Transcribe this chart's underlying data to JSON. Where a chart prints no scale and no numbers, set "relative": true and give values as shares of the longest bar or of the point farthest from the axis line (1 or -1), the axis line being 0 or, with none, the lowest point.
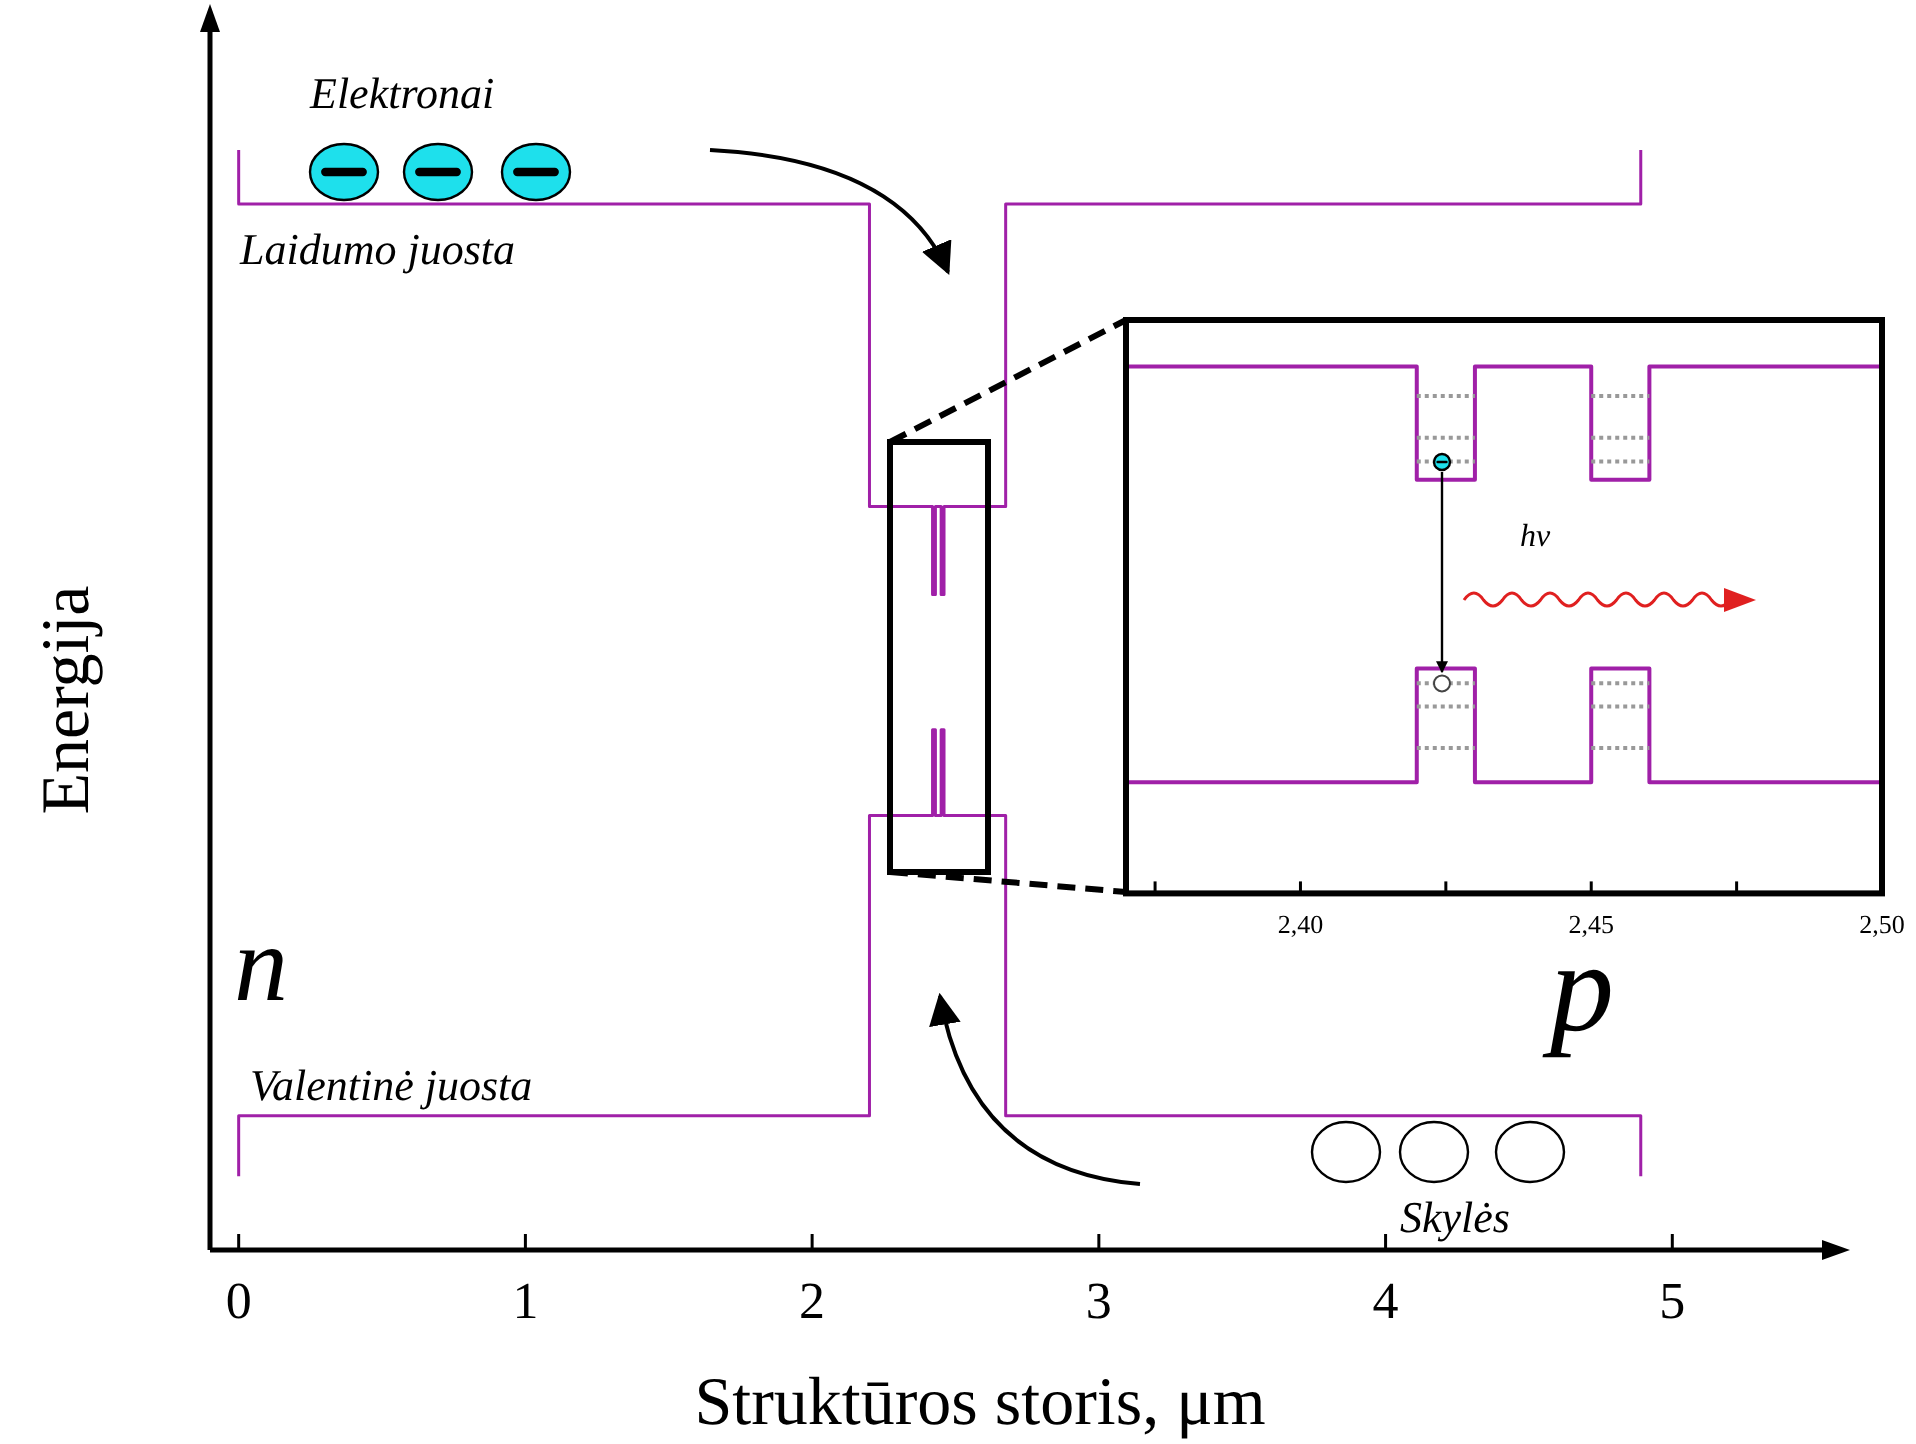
{
  "chart_data": [
    {
      "type": "line",
      "xlabel": "Struktūros storis, μm",
      "ylabel": "Energija",
      "relative": true,
      "xlim": [
        -0.1,
        5.55
      ],
      "xticks": [
        0,
        1,
        2,
        3,
        4,
        5
      ],
      "grid": false,
      "annotations": [
        "Elektronai",
        "Laidumo juosta",
        "Valentinė juosta",
        "Skylės",
        "n",
        "p"
      ],
      "series": [
        {
          "color": "#a020a8",
          "x": [
            0,
            0,
            2.2,
            2.2,
            2.42,
            2.42,
            2.43,
            2.43,
            2.45,
            2.45,
            2.46,
            2.46,
            2.675,
            2.675,
            4.89,
            4.89
          ],
          "values": [
            1,
            0.951,
            0.951,
            0.676,
            0.676,
            0.596,
            0.596,
            0.676,
            0.676,
            0.596,
            0.596,
            0.676,
            0.676,
            0.951,
            0.951,
            1
          ]
        },
        {
          "color": "#a020a8",
          "x": [
            0,
            0,
            2.2,
            2.2,
            2.42,
            2.42,
            2.43,
            2.43,
            2.45,
            2.45,
            2.46,
            2.46,
            2.675,
            2.675,
            4.89,
            4.89
          ],
          "values": [
            0.067,
            0.122,
            0.122,
            0.395,
            0.395,
            0.473,
            0.473,
            0.395,
            0.395,
            0.473,
            0.473,
            0.395,
            0.395,
            0.122,
            0.122,
            0.067
          ]
        }
      ]
    },
    {
      "type": "line",
      "relative": true,
      "xlim": [
        2.37,
        2.5
      ],
      "xticks": [
        {
          "value": 2.375,
          "label": null
        },
        {
          "value": 2.4,
          "label": "2,40"
        },
        {
          "value": 2.425,
          "label": null
        },
        {
          "value": 2.45,
          "label": "2,45"
        },
        {
          "value": 2.475,
          "label": null
        },
        {
          "value": 2.5,
          "label": "2,50"
        }
      ],
      "grid": false,
      "annotations": [
        "hν"
      ],
      "series": [
        {
          "color": "#a020a8",
          "x": [
            2.37,
            2.42,
            2.42,
            2.43,
            2.43,
            2.45,
            2.45,
            2.46,
            2.46,
            2.5
          ],
          "values": [
            1,
            1,
            0.785,
            0.785,
            1,
            1,
            0.785,
            0.785,
            1,
            1
          ]
        },
        {
          "color": "#a020a8",
          "x": [
            2.37,
            2.42,
            2.42,
            2.43,
            2.43,
            2.45,
            2.45,
            2.46,
            2.46,
            2.5
          ],
          "values": [
            0.211,
            0.211,
            0.427,
            0.427,
            0.211,
            0.211,
            0.427,
            0.427,
            0.211,
            0.211
          ]
        },
        {
          "color": "#999999",
          "line_style": "dotted",
          "x": [
            2.42,
            2.43
          ],
          "values": [
            0.944,
            0.944
          ]
        },
        {
          "color": "#999999",
          "line_style": "dotted",
          "x": [
            2.42,
            2.43
          ],
          "values": [
            0.865,
            0.865
          ]
        },
        {
          "color": "#999999",
          "line_style": "dotted",
          "x": [
            2.42,
            2.43
          ],
          "values": [
            0.82,
            0.82
          ]
        },
        {
          "color": "#999999",
          "line_style": "dotted",
          "x": [
            2.45,
            2.46
          ],
          "values": [
            0.944,
            0.944
          ]
        },
        {
          "color": "#999999",
          "line_style": "dotted",
          "x": [
            2.45,
            2.46
          ],
          "values": [
            0.865,
            0.865
          ]
        },
        {
          "color": "#999999",
          "line_style": "dotted",
          "x": [
            2.45,
            2.46
          ],
          "values": [
            0.82,
            0.82
          ]
        },
        {
          "color": "#999999",
          "line_style": "dotted",
          "x": [
            2.42,
            2.43
          ],
          "values": [
            0.399,
            0.399
          ]
        },
        {
          "color": "#999999",
          "line_style": "dotted",
          "x": [
            2.42,
            2.43
          ],
          "values": [
            0.355,
            0.355
          ]
        },
        {
          "color": "#999999",
          "line_style": "dotted",
          "x": [
            2.42,
            2.43
          ],
          "values": [
            0.276,
            0.276
          ]
        },
        {
          "color": "#999999",
          "line_style": "dotted",
          "x": [
            2.45,
            2.46
          ],
          "values": [
            0.399,
            0.399
          ]
        },
        {
          "color": "#999999",
          "line_style": "dotted",
          "x": [
            2.45,
            2.46
          ],
          "values": [
            0.355,
            0.355
          ]
        },
        {
          "color": "#999999",
          "line_style": "dotted",
          "x": [
            2.45,
            2.46
          ],
          "values": [
            0.276,
            0.276
          ]
        }
      ]
    }
  ]
}
